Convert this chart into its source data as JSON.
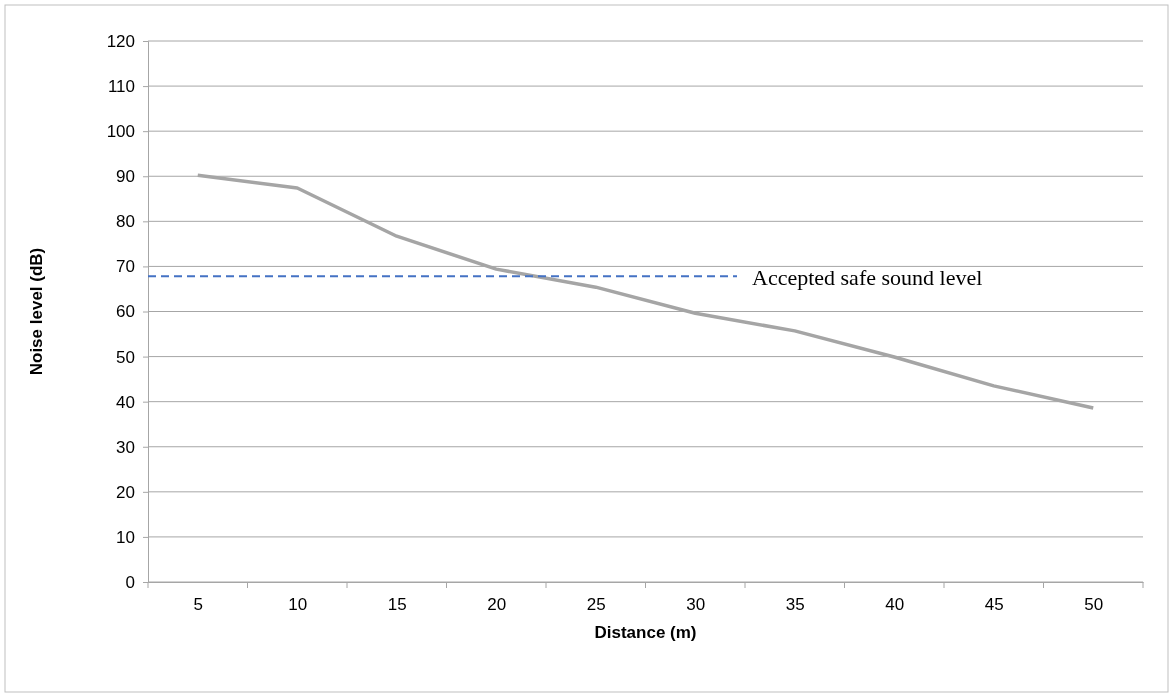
{
  "chart_data": {
    "type": "line",
    "xlabel": "Distance (m)",
    "ylabel": "Noise level (dB)",
    "categories": [
      "5",
      "10",
      "15",
      "20",
      "25",
      "30",
      "35",
      "40",
      "45",
      "50"
    ],
    "series": [
      {
        "color": "#a5a5a5",
        "values": [
          90.2,
          87.4,
          76.7,
          69.4,
          65.4,
          59.6,
          55.7,
          49.9,
          43.5,
          38.6
        ]
      }
    ],
    "ylim": [
      0,
      120
    ],
    "yticks": [
      0,
      10,
      20,
      30,
      40,
      50,
      60,
      70,
      80,
      90,
      100,
      110,
      120
    ],
    "grid": "y",
    "marker": "none",
    "line_style": "solid",
    "ref_lines": [
      {
        "axis": "y",
        "value": 67.8,
        "label": "Accepted safe sound level",
        "color": "#4472c4",
        "line_style": "dashed"
      }
    ]
  }
}
